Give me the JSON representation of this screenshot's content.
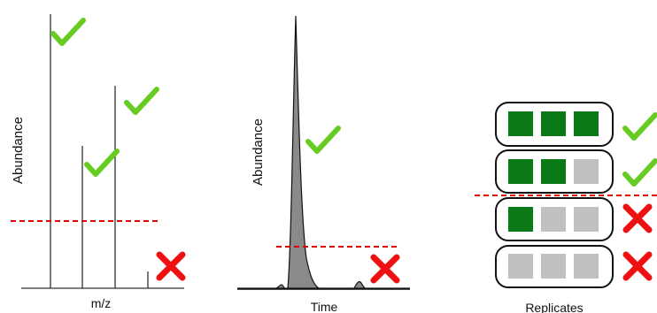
{
  "panels": {
    "mass_spec": {
      "ylabel": "Abundance",
      "xlabel": "m/z"
    },
    "chromatogram": {
      "ylabel": "Abundance",
      "xlabel": "Time"
    },
    "replicates": {
      "xlabel": "Replicates",
      "rows": [
        {
          "filled": 3,
          "total": 3,
          "status": "pass"
        },
        {
          "filled": 2,
          "total": 3,
          "status": "pass"
        },
        {
          "filled": 1,
          "total": 3,
          "status": "fail"
        },
        {
          "filled": 0,
          "total": 3,
          "status": "fail"
        }
      ]
    }
  },
  "icons": {
    "pass": "check-icon",
    "fail": "cross-icon",
    "threshold": "dashed-threshold-line"
  },
  "colors": {
    "check": "#66cc22",
    "cross": "#ee1111",
    "threshold": "#dd0000",
    "filled_box": "#0a7a16",
    "empty_box": "#c0c0c0",
    "peak_fill": "#8a8a8a"
  }
}
